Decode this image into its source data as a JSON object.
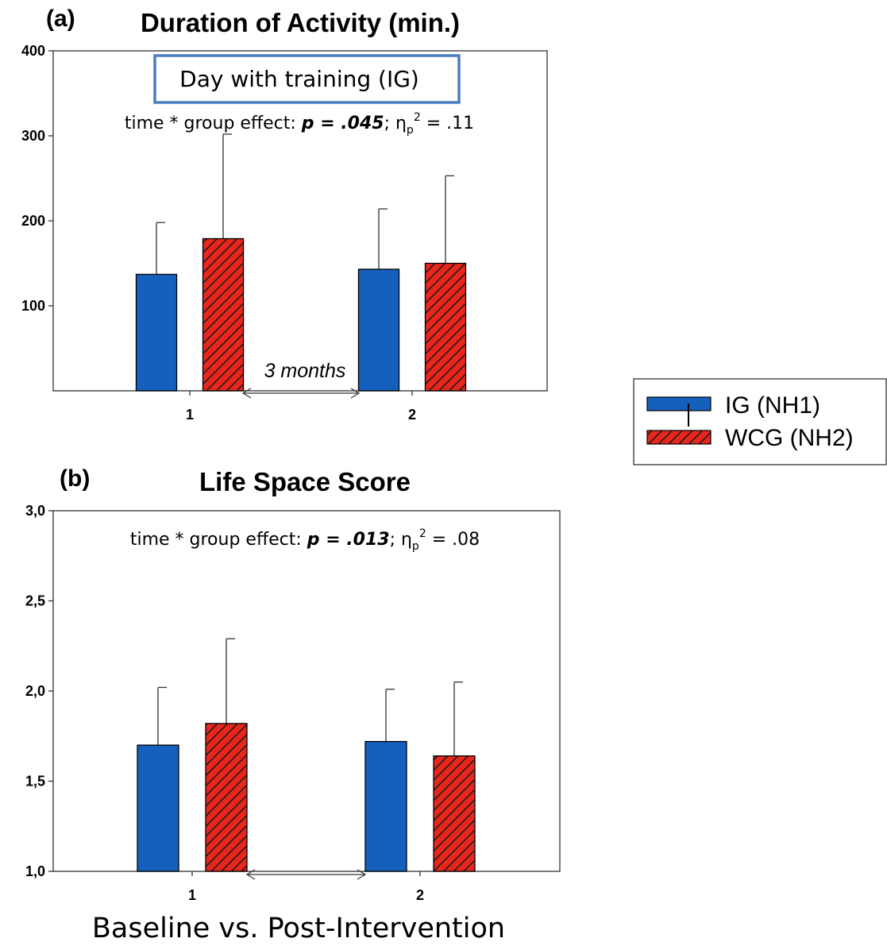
{
  "colors": {
    "ig": "#1560BD",
    "wcg_fill": "#E8261C",
    "wcg_hatch": "#1a1a1a",
    "box_border": "#4A7DC0"
  },
  "legend": {
    "ig_label": "IG (NH1)",
    "wcg_label": "WCG (NH2)"
  },
  "xlabel": "Baseline vs. Post-Intervention",
  "chart_data": [
    {
      "type": "bar",
      "panel": "(a)",
      "title": "Duration of Activity (min.)",
      "categories": [
        "1",
        "2"
      ],
      "series": [
        {
          "name": "IG (NH1)",
          "values": [
            137,
            143
          ],
          "error": [
            61,
            71
          ]
        },
        {
          "name": "WCG (NH2)",
          "values": [
            179,
            150
          ],
          "error": [
            123,
            103
          ]
        }
      ],
      "ylim": [
        0,
        400
      ],
      "yticks": [
        100,
        200,
        300,
        400
      ],
      "ytick_labels": [
        "100",
        "200",
        "300",
        "400"
      ],
      "box_text": "Day with training (IG)",
      "stat": {
        "prefix": "time * group effect: ",
        "p": "p = .045",
        "mid": "; η",
        "sub": "p",
        "sup": "2",
        "suffix": " =  .11"
      },
      "interval_label": "3 months"
    },
    {
      "type": "bar",
      "panel": "(b)",
      "title": "Life Space Score",
      "categories": [
        "1",
        "2"
      ],
      "series": [
        {
          "name": "IG (NH1)",
          "values": [
            1.7,
            1.72
          ],
          "error": [
            0.32,
            0.29
          ]
        },
        {
          "name": "WCG (NH2)",
          "values": [
            1.82,
            1.64
          ],
          "error": [
            0.47,
            0.41
          ]
        }
      ],
      "ylim": [
        1.0,
        3.0
      ],
      "yticks": [
        1.0,
        1.5,
        2.0,
        2.5,
        3.0
      ],
      "ytick_labels": [
        "1,0",
        "1,5",
        "2,0",
        "2,5",
        "3,0"
      ],
      "stat": {
        "prefix": "time * group effect: ",
        "p": "p = .013",
        "mid": "; η",
        "sub": "p",
        "sup": "2",
        "suffix": " = .08"
      },
      "interval_label": ""
    }
  ]
}
